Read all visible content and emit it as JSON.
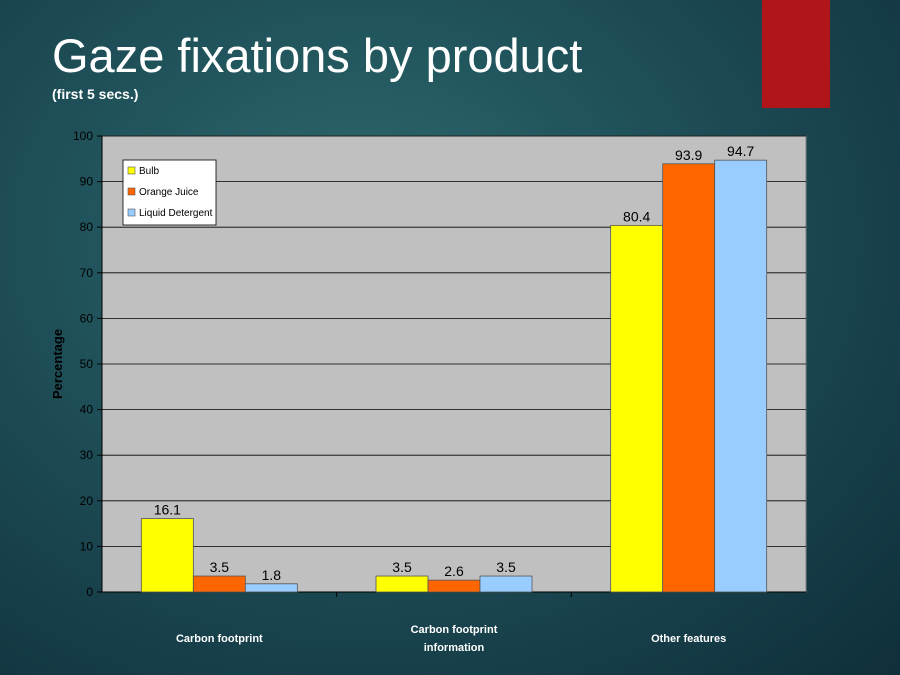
{
  "slide": {
    "title": "Gaze fixations by product",
    "subtitle": "(first 5 secs.)",
    "accent_color": "#b0151a"
  },
  "chart_data": {
    "type": "bar",
    "categories": [
      [
        "Carbon footprint"
      ],
      [
        "Carbon footprint",
        "information"
      ],
      [
        "Other features"
      ]
    ],
    "series": [
      {
        "name": "Bulb",
        "color": "#ffff00",
        "values": [
          16.1,
          3.5,
          80.4
        ]
      },
      {
        "name": "Orange Juice",
        "color": "#ff6600",
        "values": [
          3.5,
          2.6,
          93.9
        ]
      },
      {
        "name": "Liquid Detergent",
        "color": "#99ccff",
        "values": [
          1.8,
          3.5,
          94.7
        ]
      }
    ],
    "ylabel": "Percentage",
    "xlabel": "",
    "ylim": [
      0,
      100
    ],
    "yticks": [
      0,
      10,
      20,
      30,
      40,
      50,
      60,
      70,
      80,
      90,
      100
    ],
    "grid": true,
    "legend": "top-left",
    "plot_background": "#c0c0c0"
  }
}
